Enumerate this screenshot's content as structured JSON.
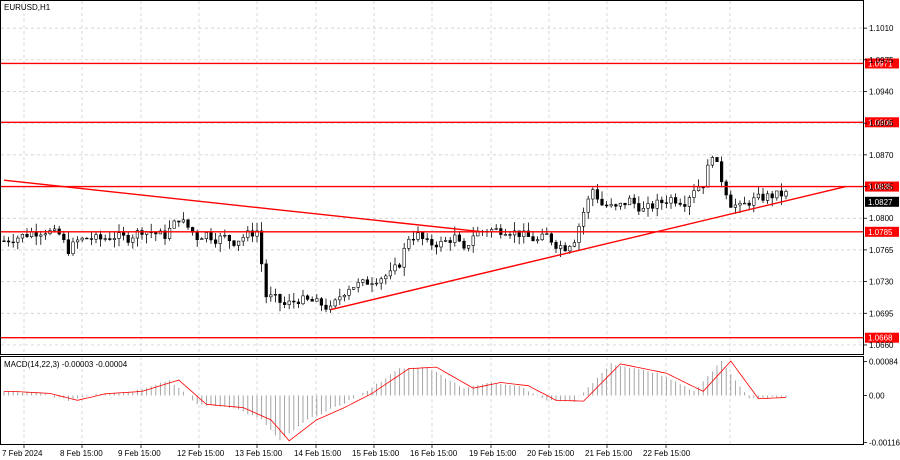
{
  "symbol_label": "EURUSD,H1",
  "macd_label": "MACD(14,22,3) -0.00003 -0.00004",
  "colors": {
    "level": "#ff0000",
    "tag_bg": "#ff0000",
    "candle": "#000000",
    "grid": "#c8c8c8"
  },
  "price_axis": {
    "ticks": [
      "1.1010",
      "1.0975",
      "1.0940",
      "1.0905",
      "1.0870",
      "1.0835",
      "1.0800",
      "1.0765",
      "1.0730",
      "1.0695",
      "1.0660"
    ],
    "range": [
      1.065,
      1.104
    ]
  },
  "levels": [
    {
      "label": "1.0971",
      "value": 1.0971
    },
    {
      "label": "1.0906",
      "value": 1.0906
    },
    {
      "label": "1.0835",
      "value": 1.0835
    },
    {
      "label": "1.0785",
      "value": 1.0785
    },
    {
      "label": "1.0668",
      "value": 1.0668
    }
  ],
  "current_price": {
    "label": "1.0827",
    "value": 1.0827
  },
  "macd_axis": {
    "ticks": [
      "0.00084",
      "0.00",
      "-0.00116"
    ],
    "range": [
      -0.0012,
      0.00095
    ]
  },
  "time_axis": [
    "7 Feb 2024",
    "8 Feb 15:00",
    "9 Feb 15:00",
    "12 Feb 15:00",
    "13 Feb 15:00",
    "14 Feb 15:00",
    "15 Feb 15:00",
    "16 Feb 15:00",
    "19 Feb 15:00",
    "20 Feb 15:00",
    "21 Feb 15:00",
    "22 Feb 15:00"
  ],
  "chart_data": {
    "type": "candlestick",
    "symbol": "EURUSD",
    "timeframe": "H1",
    "price_levels": [
      1.0971,
      1.0906,
      1.0835,
      1.0785,
      1.0668
    ],
    "current_price": 1.0827,
    "path": [
      [
        0,
        1.0775
      ],
      [
        3,
        1.0779
      ],
      [
        6,
        1.0784
      ],
      [
        9,
        1.0786
      ],
      [
        12,
        1.0782
      ],
      [
        14,
        1.0765
      ],
      [
        16,
        1.0775
      ],
      [
        18,
        1.0778
      ],
      [
        21,
        1.0777
      ],
      [
        24,
        1.078
      ],
      [
        27,
        1.0778
      ],
      [
        30,
        1.0787
      ],
      [
        33,
        1.0783
      ],
      [
        35,
        1.0781
      ],
      [
        38,
        1.08
      ],
      [
        40,
        1.079
      ],
      [
        42,
        1.0779
      ],
      [
        44,
        1.0783
      ],
      [
        46,
        1.0777
      ],
      [
        48,
        1.0779
      ],
      [
        50,
        1.0774
      ],
      [
        53,
        1.0782
      ],
      [
        55,
        1.0786
      ],
      [
        57,
        1.0714
      ],
      [
        59,
        1.0711
      ],
      [
        61,
        1.0704
      ],
      [
        64,
        1.071
      ],
      [
        67,
        1.0708
      ],
      [
        69,
        1.0705
      ],
      [
        71,
        1.0699
      ],
      [
        73,
        1.0714
      ],
      [
        75,
        1.0724
      ],
      [
        78,
        1.0728
      ],
      [
        81,
        1.0733
      ],
      [
        84,
        1.0738
      ],
      [
        86,
        1.075
      ],
      [
        88,
        1.0779
      ],
      [
        90,
        1.0781
      ],
      [
        92,
        1.0772
      ],
      [
        95,
        1.0772
      ],
      [
        98,
        1.0779
      ],
      [
        100,
        1.0763
      ],
      [
        102,
        1.0782
      ],
      [
        104,
        1.0786
      ],
      [
        106,
        1.0787
      ],
      [
        109,
        1.0787
      ],
      [
        112,
        1.0783
      ],
      [
        114,
        1.0779
      ],
      [
        116,
        1.0775
      ],
      [
        118,
        1.0781
      ],
      [
        120,
        1.0771
      ],
      [
        122,
        1.0768
      ],
      [
        124,
        1.0777
      ],
      [
        126,
        1.0807
      ],
      [
        128,
        1.0832
      ],
      [
        130,
        1.0815
      ],
      [
        133,
        1.0811
      ],
      [
        136,
        1.082
      ],
      [
        139,
        1.0809
      ],
      [
        142,
        1.0816
      ],
      [
        145,
        1.0822
      ],
      [
        148,
        1.0818
      ],
      [
        150,
        1.0833
      ],
      [
        152,
        1.0838
      ],
      [
        154,
        1.0872
      ],
      [
        156,
        1.0843
      ],
      [
        158,
        1.0816
      ],
      [
        160,
        1.0812
      ],
      [
        162,
        1.0818
      ],
      [
        164,
        1.0822
      ],
      [
        167,
        1.0825
      ],
      [
        170,
        1.0827
      ]
    ],
    "macd_path": [
      [
        0,
        0.0001
      ],
      [
        8,
        5e-05
      ],
      [
        14,
        -0.00012
      ],
      [
        20,
        4e-05
      ],
      [
        28,
        0.0001
      ],
      [
        36,
        0.00038
      ],
      [
        42,
        -0.00022
      ],
      [
        50,
        -0.0003
      ],
      [
        56,
        -0.0006
      ],
      [
        60,
        -0.00112
      ],
      [
        66,
        -0.0006
      ],
      [
        72,
        -0.0003
      ],
      [
        78,
        5e-05
      ],
      [
        86,
        0.00066
      ],
      [
        92,
        0.0007
      ],
      [
        100,
        0.00018
      ],
      [
        106,
        0.00032
      ],
      [
        112,
        0.00024
      ],
      [
        118,
        -0.00012
      ],
      [
        124,
        -0.00014
      ],
      [
        132,
        0.00078
      ],
      [
        142,
        0.00055
      ],
      [
        150,
        0.0001
      ],
      [
        156,
        0.00085
      ],
      [
        162,
        -8e-05
      ],
      [
        170,
        -4e-05
      ]
    ],
    "trendlines": [
      {
        "from": [
          0,
          1.0842
        ],
        "to": [
          104,
          1.0785
        ]
      },
      {
        "from": [
          71,
          1.0699
        ],
        "to": [
          183,
          1.0835
        ]
      }
    ]
  }
}
